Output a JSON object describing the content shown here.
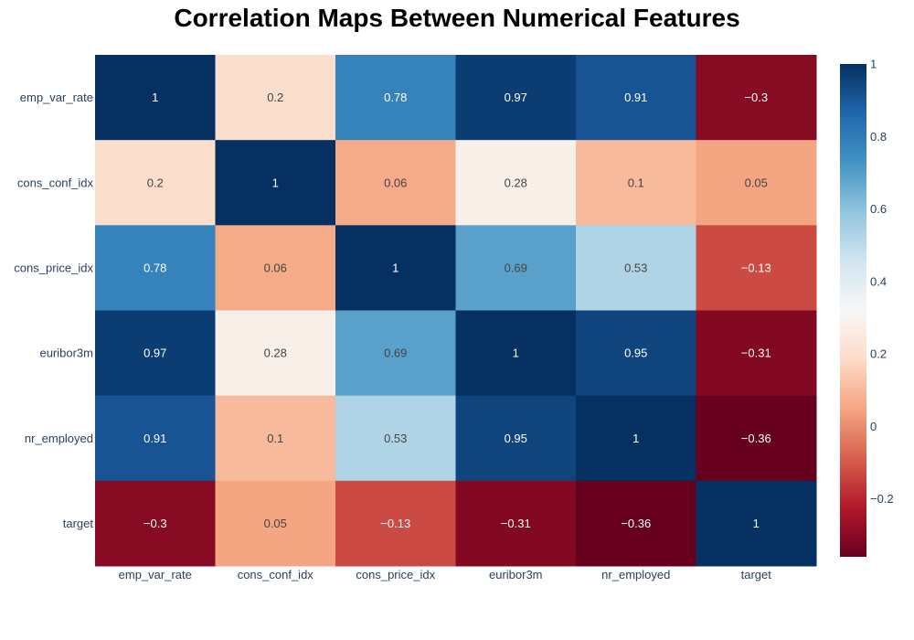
{
  "chart_data": {
    "type": "heatmap",
    "title": "Correlation Maps Between Numerical Features",
    "x_categories": [
      "emp_var_rate",
      "cons_conf_idx",
      "cons_price_idx",
      "euribor3m",
      "nr_employed",
      "target"
    ],
    "y_categories": [
      "emp_var_rate",
      "cons_conf_idx",
      "cons_price_idx",
      "euribor3m",
      "nr_employed",
      "target"
    ],
    "z": [
      [
        1,
        0.2,
        0.78,
        0.97,
        0.91,
        -0.3
      ],
      [
        0.2,
        1,
        0.06,
        0.28,
        0.1,
        0.05
      ],
      [
        0.78,
        0.06,
        1,
        0.69,
        0.53,
        -0.13
      ],
      [
        0.97,
        0.28,
        0.69,
        1,
        0.95,
        -0.31
      ],
      [
        0.91,
        0.1,
        0.53,
        0.95,
        1,
        -0.36
      ],
      [
        -0.3,
        0.05,
        -0.13,
        -0.31,
        -0.36,
        1
      ]
    ],
    "cell_labels": [
      [
        "1",
        "0.2",
        "0.78",
        "0.97",
        "0.91",
        "−0.3"
      ],
      [
        "0.2",
        "1",
        "0.06",
        "0.28",
        "0.1",
        "0.05"
      ],
      [
        "0.78",
        "0.06",
        "1",
        "0.69",
        "0.53",
        "−0.13"
      ],
      [
        "0.97",
        "0.28",
        "0.69",
        "1",
        "0.95",
        "−0.31"
      ],
      [
        "0.91",
        "0.1",
        "0.53",
        "0.95",
        "1",
        "−0.36"
      ],
      [
        "−0.3",
        "0.05",
        "−0.13",
        "−0.31",
        "−0.36",
        "1"
      ]
    ],
    "zmin": -0.36,
    "zmax": 1,
    "colorscale": "RdBu",
    "colorscale_stops": [
      "#67001f",
      "#b2182b",
      "#d6604d",
      "#f4a582",
      "#fddbc7",
      "#f7f7f7",
      "#d1e5f0",
      "#92c5de",
      "#4393c3",
      "#2166ac",
      "#053061"
    ],
    "colorbar": {
      "tick_values": [
        1,
        0.8,
        0.6,
        0.4,
        0.2,
        0,
        -0.2
      ],
      "tick_labels": [
        "1",
        "0.8",
        "0.6",
        "0.4",
        "0.2",
        "0",
        "−0.2"
      ]
    },
    "grid": false
  }
}
